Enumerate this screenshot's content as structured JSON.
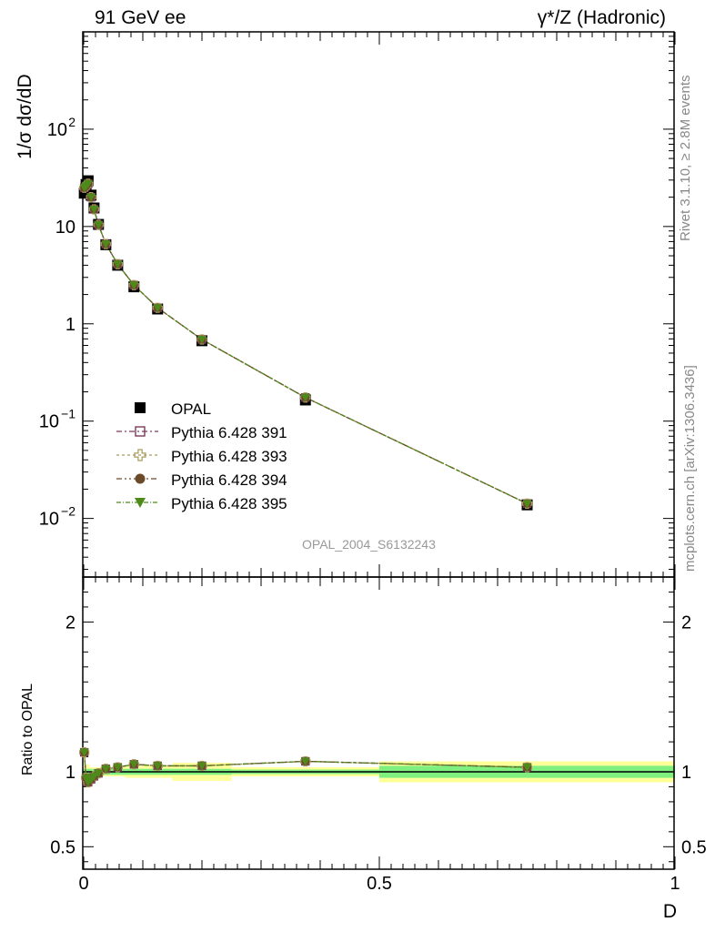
{
  "header": {
    "left_title": "91 GeV ee",
    "right_title": "γ*/Z (Hadronic)"
  },
  "side": {
    "rivet": "Rivet 3.1.10, ≥ 2.8M events",
    "mcplots": "mcplots.cern.ch [arXiv:1306.3436]"
  },
  "chart_data": [
    {
      "type": "scatter",
      "panel": "main",
      "ylabel": "1/σ dσ/dD",
      "yscale": "log",
      "ylim": [
        0.0025,
        1000
      ],
      "xlim": [
        0,
        1
      ],
      "ytick_labels": [
        {
          "v": 0.01,
          "mant": "10",
          "exp": "−2"
        },
        {
          "v": 0.1,
          "mant": "10",
          "exp": "−1"
        },
        {
          "v": 1,
          "mant": "1",
          "exp": ""
        },
        {
          "v": 10,
          "mant": "10",
          "exp": ""
        },
        {
          "v": 100,
          "mant": "10",
          "exp": "2"
        }
      ],
      "watermark": "OPAL_2004_S6132243",
      "legend_position": "middle-left",
      "x": [
        0.001,
        0.004,
        0.0075,
        0.0125,
        0.0175,
        0.025,
        0.0375,
        0.0575,
        0.085,
        0.125,
        0.2,
        0.375,
        0.75
      ],
      "series": [
        {
          "name": "OPAL",
          "marker": "square-filled",
          "color": "#000000",
          "values": [
            22,
            27,
            29.5,
            21,
            15.5,
            10.5,
            6.5,
            4.0,
            2.4,
            1.42,
            0.67,
            0.165,
            0.0138
          ]
        },
        {
          "name": "Pythia 6.428 391",
          "marker": "square-open",
          "color": "#7a3d5a",
          "values": [
            25,
            26,
            27.5,
            20,
            15,
            10.4,
            6.6,
            4.1,
            2.5,
            1.46,
            0.69,
            0.175,
            0.0142
          ]
        },
        {
          "name": "Pythia 6.428 393",
          "marker": "cross-open",
          "color": "#a89a5a",
          "values": [
            25,
            26,
            27.5,
            20,
            15,
            10.4,
            6.6,
            4.1,
            2.5,
            1.46,
            0.69,
            0.175,
            0.0142
          ]
        },
        {
          "name": "Pythia 6.428 394",
          "marker": "circle-filled",
          "color": "#6b4a2a",
          "values": [
            25,
            26,
            27.5,
            20,
            15,
            10.4,
            6.6,
            4.1,
            2.5,
            1.46,
            0.69,
            0.175,
            0.0142
          ]
        },
        {
          "name": "Pythia 6.428 395",
          "marker": "triangle-down-filled",
          "color": "#4e8a1a",
          "values": [
            25,
            26,
            27.5,
            20,
            15,
            10.4,
            6.6,
            4.1,
            2.5,
            1.46,
            0.69,
            0.175,
            0.0142
          ]
        }
      ]
    },
    {
      "type": "line",
      "panel": "ratio",
      "ylabel": "Ratio to OPAL",
      "xlabel": "D",
      "ylim": [
        0.35,
        2.3
      ],
      "xlim": [
        0,
        1
      ],
      "ytick_labels": [
        "0.5",
        "1",
        "2"
      ],
      "xtick_labels": [
        "0",
        "0.5",
        "1"
      ],
      "x": [
        0.001,
        0.004,
        0.0075,
        0.0125,
        0.0175,
        0.025,
        0.0375,
        0.0575,
        0.085,
        0.125,
        0.2,
        0.375,
        0.75
      ],
      "bands": {
        "x_edges": [
          0,
          0.0025,
          0.005,
          0.01,
          0.015,
          0.02,
          0.03,
          0.045,
          0.07,
          0.1,
          0.15,
          0.25,
          0.5,
          1.0
        ],
        "inner_half_width": [
          0.02,
          0.02,
          0.02,
          0.02,
          0.02,
          0.02,
          0.02,
          0.02,
          0.02,
          0.02,
          0.02,
          0.015,
          0.04
        ],
        "outer_half_width": [
          0.04,
          0.04,
          0.05,
          0.03,
          0.03,
          0.03,
          0.03,
          0.03,
          0.04,
          0.04,
          0.06,
          0.03,
          0.07
        ],
        "inner_color": "#7ff07f",
        "outer_color": "#ffff99"
      },
      "series": [
        {
          "name": "Pythia 6.428 391",
          "color": "#7a3d5a",
          "values": [
            1.13,
            0.96,
            0.93,
            0.95,
            0.97,
            0.99,
            1.02,
            1.03,
            1.05,
            1.04,
            1.04,
            1.07,
            1.03
          ]
        },
        {
          "name": "Pythia 6.428 393",
          "color": "#a89a5a",
          "values": [
            1.13,
            0.96,
            0.93,
            0.95,
            0.97,
            0.99,
            1.02,
            1.03,
            1.05,
            1.04,
            1.04,
            1.07,
            1.03
          ]
        },
        {
          "name": "Pythia 6.428 394",
          "color": "#6b4a2a",
          "values": [
            1.13,
            0.96,
            0.93,
            0.95,
            0.97,
            0.99,
            1.02,
            1.03,
            1.05,
            1.04,
            1.04,
            1.07,
            1.03
          ]
        },
        {
          "name": "Pythia 6.428 395",
          "color": "#4e8a1a",
          "values": [
            1.13,
            0.96,
            0.93,
            0.95,
            0.97,
            0.99,
            1.02,
            1.03,
            1.05,
            1.04,
            1.04,
            1.07,
            1.03
          ]
        }
      ]
    }
  ]
}
